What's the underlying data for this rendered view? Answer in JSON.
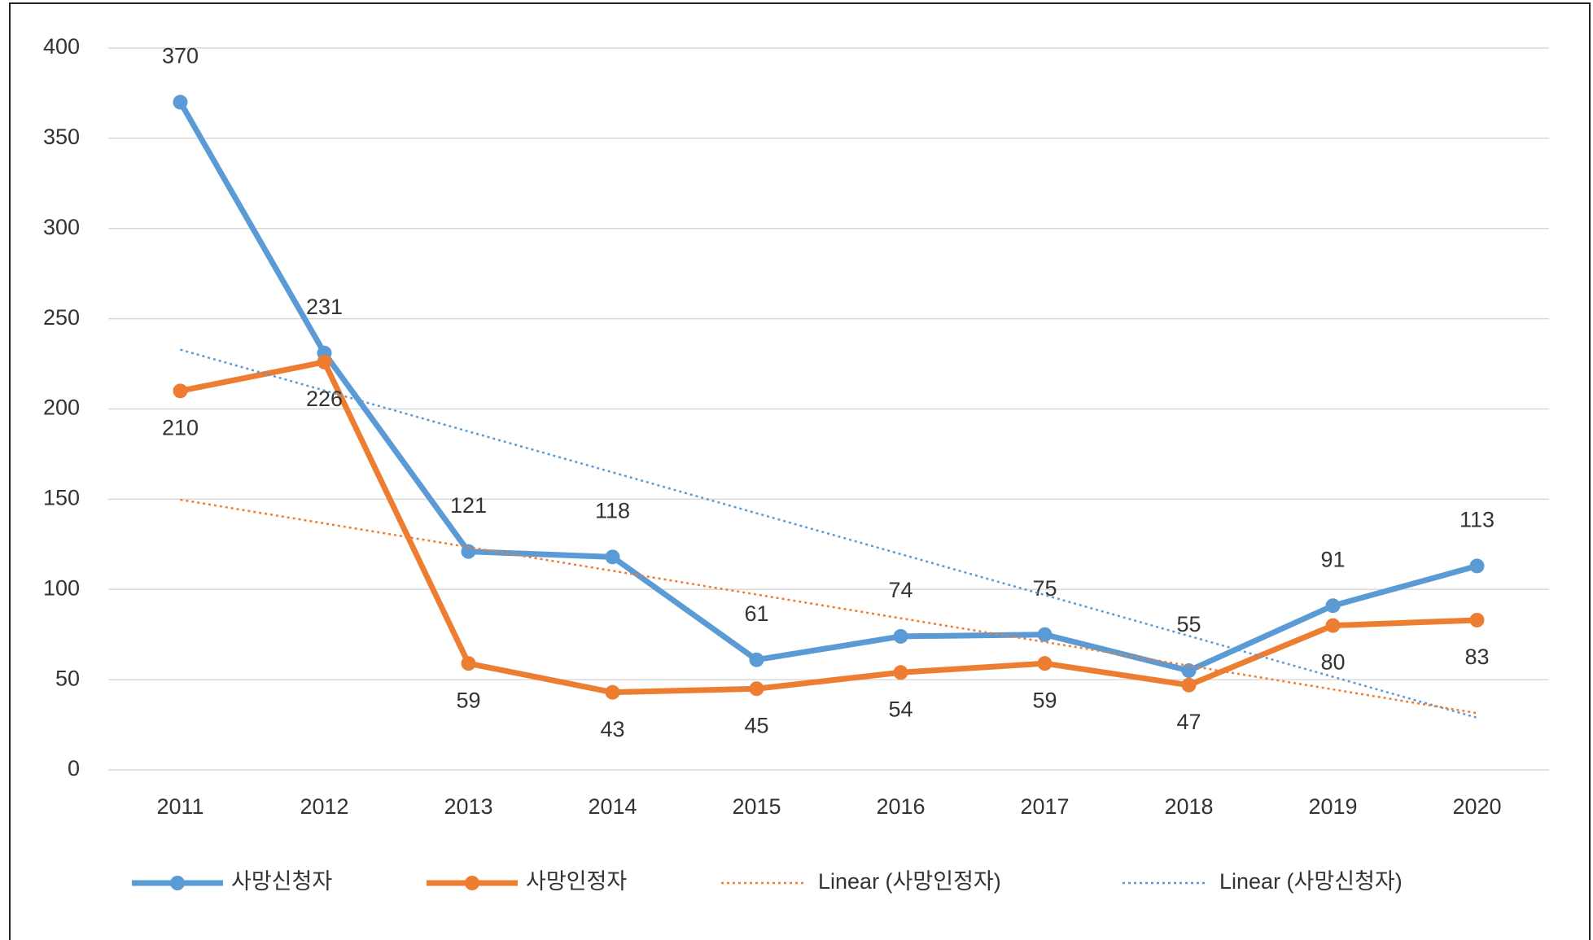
{
  "chart_data": {
    "type": "line",
    "categories": [
      "2011",
      "2012",
      "2013",
      "2014",
      "2015",
      "2016",
      "2017",
      "2018",
      "2019",
      "2020"
    ],
    "series": [
      {
        "name": "사망신청자",
        "color": "#5b9bd5",
        "values": [
          370,
          231,
          121,
          118,
          61,
          74,
          75,
          55,
          91,
          113
        ],
        "trendline": {
          "name": "Linear (사망신청자)",
          "type": "linear",
          "color": "#5b9bd5"
        }
      },
      {
        "name": "사망인정자",
        "color": "#ed7d31",
        "values": [
          210,
          226,
          59,
          43,
          45,
          54,
          59,
          47,
          80,
          83
        ],
        "trendline": {
          "name": "Linear (사망인정자)",
          "type": "linear",
          "color": "#ed7d31"
        }
      }
    ],
    "ylim": [
      0,
      400
    ],
    "yticks": [
      0,
      50,
      100,
      150,
      200,
      250,
      300,
      350,
      400
    ],
    "grid": true,
    "legend": "bottom"
  }
}
